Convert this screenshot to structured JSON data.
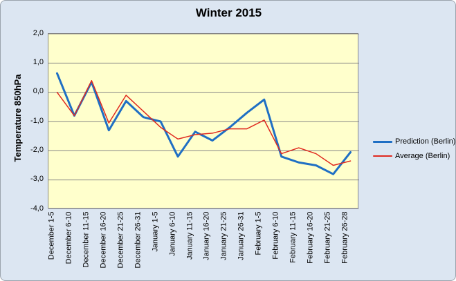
{
  "window": {
    "title": "Winter 2015"
  },
  "colors": {
    "chart_background": "#dce6f2",
    "plot_background": "#ffffcc",
    "gridline": "#848484",
    "prediction_line": "#1f6fc4",
    "average_line": "#e0291f"
  },
  "y_axis": {
    "title": "Temperature 850hPa",
    "tick_labels": [
      "2,0",
      "1,0",
      "0,0",
      "-1,0",
      "-2,0",
      "-3,0",
      "-4,0"
    ],
    "tick_values": [
      2,
      1,
      0,
      -1,
      -2,
      -3,
      -4
    ]
  },
  "legend": {
    "items": [
      {
        "label": "Prediction (Berlin)",
        "color": "#1f6fc4",
        "thickness": 3
      },
      {
        "label": "Average (Berlin)",
        "color": "#e0291f",
        "thickness": 2
      }
    ]
  },
  "chart_data": {
    "type": "line",
    "title": "Winter 2015",
    "xlabel": "",
    "ylabel": "Temperature 850hPa",
    "ylim": [
      -4,
      2
    ],
    "grid": true,
    "legend_position": "right",
    "categories": [
      "December 1-5",
      "December 6-10",
      "December 11-15",
      "December 16-20",
      "December 21-25",
      "December 26-31",
      "January 1-5",
      "January 6-10",
      "January 11-15",
      "January 16-20",
      "January 21-25",
      "January 26-31",
      "February 1-5",
      "February 6-10",
      "February 11-15",
      "February 16-20",
      "February 21-25",
      "February 26-28"
    ],
    "series": [
      {
        "name": "Prediction (Berlin)",
        "color": "#1f6fc4",
        "stroke_width": 3,
        "values": [
          0.65,
          -0.8,
          0.35,
          -1.3,
          -0.3,
          -0.85,
          -1.0,
          -2.2,
          -1.35,
          -1.65,
          -1.2,
          -0.7,
          -0.25,
          -2.2,
          -2.4,
          -2.5,
          -2.8,
          -2.05
        ]
      },
      {
        "name": "Average (Berlin)",
        "color": "#e0291f",
        "stroke_width": 1.5,
        "values": [
          0.0,
          -0.8,
          0.4,
          -1.05,
          -0.1,
          -0.65,
          -1.2,
          -1.6,
          -1.45,
          -1.4,
          -1.25,
          -1.25,
          -0.95,
          -2.1,
          -1.9,
          -2.1,
          -2.5,
          -2.35
        ]
      }
    ]
  }
}
